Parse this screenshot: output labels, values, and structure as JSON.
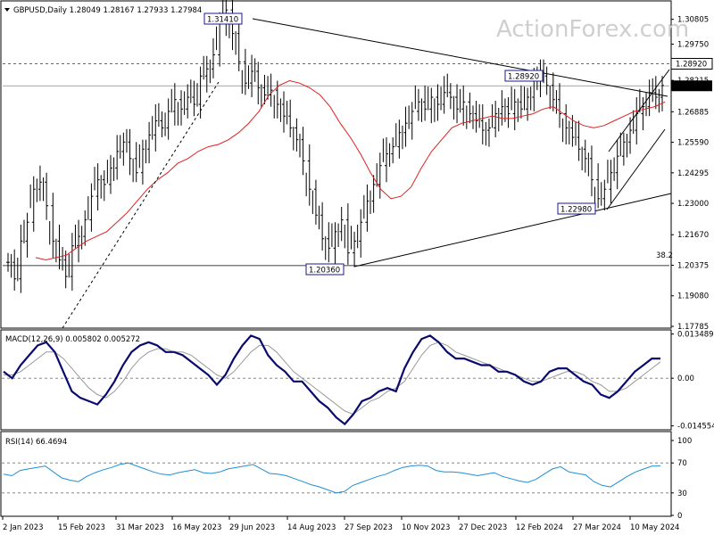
{
  "chart_data": {
    "type": "candlestick",
    "symbol_line": "GBPUSD,Daily  1.28049 1.28167 1.27933 1.27984",
    "watermark": "ActionForex.com",
    "price_axis": {
      "ylim": [
        1.17785,
        1.3151
      ],
      "ticks": [
        "1.30805",
        "1.29750",
        "1.28920",
        "1.28215",
        "1.27984",
        "1.26885",
        "1.25590",
        "1.24295",
        "1.23000",
        "1.21670",
        "1.20375",
        "1.19080",
        "1.17785"
      ],
      "current_price": "1.27984",
      "highlight_level": "1.28920"
    },
    "x_axis": {
      "labels": [
        "2 Jan 2023",
        "15 Feb 2023",
        "31 Mar 2023",
        "16 May 2023",
        "29 Jun 2023",
        "14 Aug 2023",
        "27 Sep 2023",
        "10 Nov 2023",
        "27 Dec 2023",
        "12 Feb 2024",
        "27 Mar 2024",
        "10 May 2024"
      ]
    },
    "price_series": {
      "close": [
        1.205,
        1.198,
        1.214,
        1.222,
        1.236,
        1.239,
        1.229,
        1.214,
        1.206,
        1.199,
        1.212,
        1.216,
        1.223,
        1.233,
        1.24,
        1.238,
        1.245,
        1.252,
        1.256,
        1.249,
        1.243,
        1.253,
        1.259,
        1.265,
        1.262,
        1.269,
        1.274,
        1.27,
        1.275,
        1.272,
        1.284,
        1.287,
        1.293,
        1.307,
        1.312,
        1.302,
        1.29,
        1.281,
        1.286,
        1.279,
        1.276,
        1.278,
        1.272,
        1.267,
        1.262,
        1.257,
        1.248,
        1.236,
        1.225,
        1.215,
        1.211,
        1.218,
        1.223,
        1.209,
        1.214,
        1.222,
        1.231,
        1.238,
        1.246,
        1.251,
        1.254,
        1.26,
        1.264,
        1.269,
        1.273,
        1.27,
        1.275,
        1.272,
        1.277,
        1.275,
        1.27,
        1.273,
        1.268,
        1.265,
        1.261,
        1.262,
        1.268,
        1.271,
        1.268,
        1.273,
        1.27,
        1.275,
        1.282,
        1.284,
        1.28,
        1.274,
        1.268,
        1.262,
        1.258,
        1.253,
        1.249,
        1.24,
        1.232,
        1.236,
        1.243,
        1.25,
        1.256,
        1.261,
        1.268,
        1.271,
        1.277,
        1.275,
        1.28
      ],
      "sma_red": [
        1.207,
        1.206,
        1.207,
        1.208,
        1.211,
        1.214,
        1.216,
        1.218,
        1.222,
        1.226,
        1.231,
        1.236,
        1.24,
        1.243,
        1.247,
        1.249,
        1.252,
        1.254,
        1.255,
        1.257,
        1.26,
        1.264,
        1.269,
        1.276,
        1.28,
        1.282,
        1.281,
        1.279,
        1.276,
        1.271,
        1.264,
        1.258,
        1.251,
        1.243,
        1.236,
        1.232,
        1.233,
        1.237,
        1.245,
        1.252,
        1.257,
        1.262,
        1.264,
        1.265,
        1.266,
        1.267,
        1.266,
        1.266,
        1.267,
        1.268,
        1.27,
        1.271,
        1.268,
        1.265,
        1.263,
        1.262,
        1.263,
        1.265,
        1.267,
        1.269,
        1.27,
        1.271,
        1.273
      ],
      "bar_shadow_y": []
    },
    "trendlines_note": "",
    "annotations": [
      {
        "text": "1.31410"
      },
      {
        "text": "1.28920"
      },
      {
        "text": "1.22980"
      },
      {
        "text": "1.20360"
      },
      {
        "text": "38.2"
      }
    ],
    "macd": {
      "label": "MACD(12,26,9) 0.005802 0.005272",
      "ticks": [
        "0.013489",
        "0.00",
        "-0.014554"
      ],
      "ylim": [
        -0.0152,
        0.0142
      ],
      "macd_values": [
        0.002,
        0.0,
        0.004,
        0.007,
        0.01,
        0.011,
        0.008,
        0.002,
        -0.004,
        -0.006,
        -0.007,
        -0.008,
        -0.005,
        -0.001,
        0.004,
        0.008,
        0.01,
        0.011,
        0.01,
        0.008,
        0.008,
        0.007,
        0.005,
        0.003,
        0.001,
        -0.002,
        0.001,
        0.006,
        0.01,
        0.013,
        0.012,
        0.007,
        0.004,
        0.002,
        -0.001,
        -0.001,
        -0.004,
        -0.007,
        -0.009,
        -0.012,
        -0.014,
        -0.011,
        -0.007,
        -0.006,
        -0.004,
        -0.003,
        -0.004,
        0.003,
        0.008,
        0.012,
        0.013,
        0.011,
        0.008,
        0.006,
        0.006,
        0.005,
        0.004,
        0.004,
        0.002,
        0.002,
        0.001,
        -0.001,
        -0.002,
        -0.001,
        0.002,
        0.003,
        0.003,
        0.001,
        -0.001,
        -0.002,
        -0.005,
        -0.006,
        -0.004,
        -0.001,
        0.002,
        0.004,
        0.006,
        0.006
      ],
      "signal_values": [
        0.001,
        0.001,
        0.002,
        0.004,
        0.006,
        0.008,
        0.008,
        0.006,
        0.003,
        0.0,
        -0.003,
        -0.005,
        -0.006,
        -0.004,
        -0.001,
        0.003,
        0.006,
        0.008,
        0.009,
        0.009,
        0.008,
        0.008,
        0.007,
        0.005,
        0.003,
        0.001,
        0.0,
        0.002,
        0.005,
        0.008,
        0.01,
        0.01,
        0.008,
        0.005,
        0.002,
        0.0,
        -0.002,
        -0.004,
        -0.006,
        -0.008,
        -0.01,
        -0.011,
        -0.009,
        -0.007,
        -0.006,
        -0.004,
        -0.003,
        -0.001,
        0.003,
        0.007,
        0.01,
        0.011,
        0.01,
        0.008,
        0.007,
        0.006,
        0.005,
        0.004,
        0.003,
        0.002,
        0.001,
        0.0,
        -0.001,
        -0.001,
        0.0,
        0.001,
        0.002,
        0.002,
        0.001,
        -0.001,
        -0.002,
        -0.004,
        -0.004,
        -0.003,
        -0.001,
        0.001,
        0.003,
        0.005
      ]
    },
    "rsi": {
      "label": "RSI(14) 66.4694",
      "ticks": [
        "100",
        "70",
        "30",
        "0"
      ],
      "ylim": [
        0,
        100
      ],
      "values": [
        55,
        53,
        60,
        62,
        64,
        66,
        58,
        50,
        47,
        45,
        52,
        57,
        61,
        64,
        68,
        70,
        66,
        62,
        58,
        55,
        54,
        57,
        59,
        61,
        57,
        56,
        58,
        62,
        64,
        66,
        68,
        62,
        56,
        55,
        53,
        49,
        45,
        41,
        38,
        34,
        30,
        32,
        40,
        44,
        48,
        52,
        55,
        60,
        64,
        66,
        67,
        66,
        60,
        58,
        58,
        57,
        55,
        53,
        55,
        57,
        52,
        49,
        46,
        44,
        48,
        55,
        62,
        65,
        58,
        56,
        54,
        45,
        40,
        38,
        45,
        52,
        58,
        62,
        66,
        66
      ]
    }
  }
}
